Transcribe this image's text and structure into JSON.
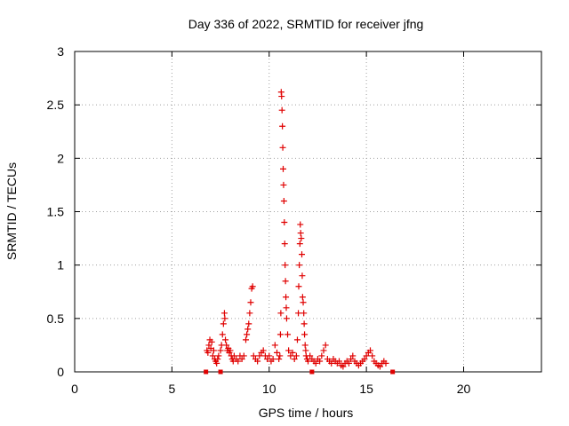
{
  "chart_data": {
    "type": "scatter",
    "title": "Day 336 of 2022, SRMTID for receiver jfng",
    "xlabel": "GPS time / hours",
    "ylabel": "SRMTID / TECUs",
    "xlim": [
      0,
      24
    ],
    "ylim": [
      0,
      3
    ],
    "xticks": [
      0,
      5,
      10,
      15,
      20
    ],
    "yticks": [
      0,
      0.5,
      1,
      1.5,
      2,
      2.5,
      3
    ],
    "xtick_labels": [
      "0",
      "5",
      "10",
      "15",
      "20"
    ],
    "ytick_labels": [
      "0",
      "0.5",
      "1",
      "1.5",
      "2",
      "2.5",
      "3"
    ],
    "grid": true,
    "marker": "plus",
    "color": "#e00000",
    "series": [
      {
        "x": [
          6.8,
          6.85,
          6.9,
          6.95,
          7.0,
          7.05,
          7.1,
          7.15,
          7.2,
          7.25,
          7.3,
          7.35,
          7.4,
          7.5,
          7.55,
          7.6,
          7.65,
          7.7,
          7.72,
          7.75,
          7.8,
          7.85,
          7.9,
          7.95,
          8.0,
          8.05,
          8.1,
          8.15,
          8.2,
          8.3,
          8.4,
          8.5,
          8.6,
          8.7,
          8.8,
          8.85,
          8.9,
          8.95,
          9.0,
          9.05,
          9.1,
          9.15,
          9.2,
          9.3,
          9.4,
          9.5,
          9.6,
          9.7,
          9.8,
          9.9,
          10.0,
          10.1,
          10.2,
          10.3,
          10.4,
          10.5,
          10.55,
          10.58,
          10.6,
          10.62,
          10.64,
          10.66,
          10.68,
          10.7,
          10.72,
          10.74,
          10.76,
          10.78,
          10.8,
          10.82,
          10.84,
          10.86,
          10.88,
          10.9,
          10.95,
          11.0,
          11.1,
          11.2,
          11.3,
          11.4,
          11.45,
          11.5,
          11.52,
          11.55,
          11.58,
          11.6,
          11.62,
          11.65,
          11.68,
          11.7,
          11.72,
          11.75,
          11.78,
          11.8,
          11.82,
          11.85,
          11.88,
          11.9,
          11.95,
          12.0,
          12.1,
          12.2,
          12.3,
          12.4,
          12.5,
          12.6,
          12.7,
          12.8,
          12.9,
          13.0,
          13.1,
          13.2,
          13.3,
          13.4,
          13.5,
          13.6,
          13.7,
          13.8,
          13.9,
          14.0,
          14.1,
          14.2,
          14.3,
          14.4,
          14.5,
          14.6,
          14.7,
          14.8,
          14.9,
          15.0,
          15.1,
          15.2,
          15.3,
          15.4,
          15.5,
          15.6,
          15.7,
          15.8,
          15.9,
          16.0,
          6.75,
          7.5,
          12.2,
          16.35
        ],
        "y": [
          0.2,
          0.18,
          0.25,
          0.3,
          0.22,
          0.28,
          0.15,
          0.2,
          0.12,
          0.1,
          0.08,
          0.12,
          0.15,
          0.2,
          0.25,
          0.35,
          0.45,
          0.55,
          0.5,
          0.3,
          0.25,
          0.2,
          0.22,
          0.18,
          0.2,
          0.15,
          0.12,
          0.1,
          0.15,
          0.12,
          0.1,
          0.15,
          0.12,
          0.15,
          0.3,
          0.35,
          0.4,
          0.45,
          0.55,
          0.65,
          0.78,
          0.8,
          0.15,
          0.12,
          0.1,
          0.15,
          0.18,
          0.2,
          0.15,
          0.12,
          0.15,
          0.1,
          0.12,
          0.25,
          0.18,
          0.12,
          0.15,
          0.35,
          0.55,
          2.62,
          2.58,
          2.45,
          2.3,
          2.1,
          1.9,
          1.75,
          1.6,
          1.4,
          1.2,
          1.0,
          0.85,
          0.7,
          0.6,
          0.5,
          0.35,
          0.2,
          0.15,
          0.18,
          0.12,
          0.15,
          0.3,
          0.55,
          0.8,
          1.0,
          1.2,
          1.38,
          1.3,
          1.25,
          1.1,
          0.9,
          0.7,
          0.65,
          0.55,
          0.45,
          0.35,
          0.25,
          0.2,
          0.15,
          0.12,
          0.1,
          0.15,
          0.12,
          0.1,
          0.08,
          0.12,
          0.1,
          0.15,
          0.2,
          0.25,
          0.12,
          0.1,
          0.08,
          0.12,
          0.1,
          0.08,
          0.1,
          0.06,
          0.05,
          0.08,
          0.1,
          0.08,
          0.12,
          0.15,
          0.1,
          0.08,
          0.06,
          0.08,
          0.1,
          0.12,
          0.15,
          0.18,
          0.2,
          0.15,
          0.1,
          0.08,
          0.06,
          0.05,
          0.08,
          0.1,
          0.08,
          0.0,
          0.0,
          0.0,
          0.0
        ]
      }
    ]
  }
}
